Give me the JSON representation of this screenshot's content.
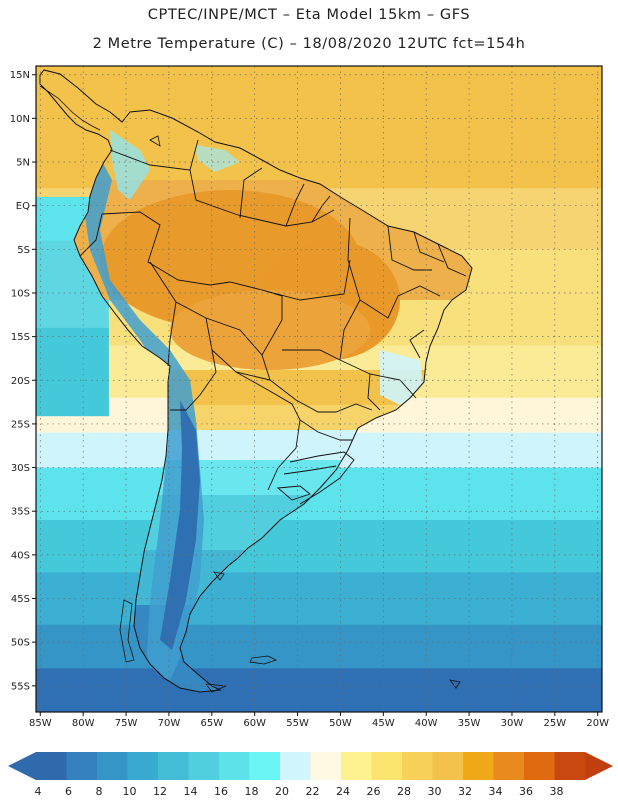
{
  "title_line1": "CPTEC/INPE/MCT –  Eta Model 15km – GFS",
  "title_line2": "2 Metre Temperature (C) – 18/08/2020 12UTC fct=154h",
  "map": {
    "lon_min": -85.5,
    "lon_max": -19.5,
    "lat_min": -58.0,
    "lat_max": 16.0,
    "lat_labels": [
      {
        "value": 15,
        "text": "15N"
      },
      {
        "value": 10,
        "text": "10N"
      },
      {
        "value": 5,
        "text": "5N"
      },
      {
        "value": 0,
        "text": "EQ"
      },
      {
        "value": -5,
        "text": "5S"
      },
      {
        "value": -10,
        "text": "10S"
      },
      {
        "value": -15,
        "text": "15S"
      },
      {
        "value": -20,
        "text": "20S"
      },
      {
        "value": -25,
        "text": "25S"
      },
      {
        "value": -30,
        "text": "30S"
      },
      {
        "value": -35,
        "text": "35S"
      },
      {
        "value": -40,
        "text": "40S"
      },
      {
        "value": -45,
        "text": "45S"
      },
      {
        "value": -50,
        "text": "50S"
      },
      {
        "value": -55,
        "text": "55S"
      }
    ],
    "lon_labels": [
      {
        "value": -85,
        "text": "85W"
      },
      {
        "value": -80,
        "text": "80W"
      },
      {
        "value": -75,
        "text": "75W"
      },
      {
        "value": -70,
        "text": "70W"
      },
      {
        "value": -65,
        "text": "65W"
      },
      {
        "value": -60,
        "text": "60W"
      },
      {
        "value": -55,
        "text": "55W"
      },
      {
        "value": -50,
        "text": "50W"
      },
      {
        "value": -45,
        "text": "45W"
      },
      {
        "value": -40,
        "text": "40W"
      },
      {
        "value": -35,
        "text": "35W"
      },
      {
        "value": -30,
        "text": "30W"
      },
      {
        "value": -25,
        "text": "25W"
      },
      {
        "value": -20,
        "text": "20W"
      }
    ],
    "ocean_bands": [
      {
        "lat_top": 16,
        "lat_bot": 2,
        "color": "#f3c24b"
      },
      {
        "lat_top": 2,
        "lat_bot": -5,
        "color": "#f6d472"
      },
      {
        "lat_top": -5,
        "lat_bot": -16,
        "color": "#f8e07c"
      },
      {
        "lat_top": -16,
        "lat_bot": -22,
        "color": "#fbea96"
      },
      {
        "lat_top": -22,
        "lat_bot": -26,
        "color": "#fff6da"
      },
      {
        "lat_top": -26,
        "lat_bot": -30,
        "color": "#cff4fb"
      },
      {
        "lat_top": -30,
        "lat_bot": -36,
        "color": "#5de3ec"
      },
      {
        "lat_top": -36,
        "lat_bot": -42,
        "color": "#43c9da"
      },
      {
        "lat_top": -42,
        "lat_bot": -48,
        "color": "#3cb0d2"
      },
      {
        "lat_top": -48,
        "lat_bot": -53,
        "color": "#3595c6"
      },
      {
        "lat_top": -53,
        "lat_bot": -58,
        "color": "#2f6fb3"
      }
    ],
    "pacific_bands": [
      {
        "lat_top": 1,
        "lat_bot": -4,
        "color": "#5de3ec"
      },
      {
        "lat_top": -4,
        "lat_bot": -14,
        "color": "#5fd7e3"
      },
      {
        "lat_top": -14,
        "lat_bot": -24,
        "color": "#43c9da"
      }
    ]
  },
  "colorbar": {
    "colors": [
      "#2e6aac",
      "#3580bf",
      "#3595c6",
      "#39abd0",
      "#43bdd6",
      "#52cfdf",
      "#5ee2ea",
      "#6cf5f5",
      "#d0f5fb",
      "#fff8e2",
      "#fdf28f",
      "#fbe46d",
      "#f7d15a",
      "#f3c24b",
      "#f0aa17",
      "#e88a1e",
      "#e06a10",
      "#c84810"
    ],
    "left_arrow_color": "#2e6aac",
    "right_arrow_color": "#c04010",
    "labels": [
      "4",
      "6",
      "8",
      "10",
      "12",
      "14",
      "16",
      "18",
      "20",
      "22",
      "24",
      "26",
      "28",
      "30",
      "32",
      "34",
      "36",
      "38"
    ]
  }
}
